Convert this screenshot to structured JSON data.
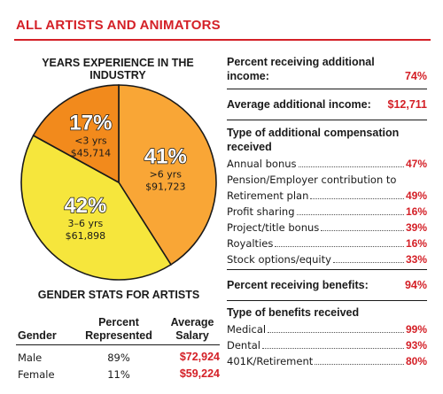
{
  "title": "ALL ARTISTS AND ANIMATORS",
  "chart_data": {
    "type": "pie",
    "title": "YEARS EXPERIENCE IN THE INDUSTRY",
    "slices": [
      {
        "label": ">6 yrs",
        "pct": 41,
        "pct_label": "41%",
        "salary": "$91,723",
        "color": "#f9a636"
      },
      {
        "label": "3–6 yrs",
        "pct": 42,
        "pct_label": "42%",
        "salary": "$61,898",
        "color": "#f6e63c"
      },
      {
        "label": "<3 yrs",
        "pct": 17,
        "pct_label": "17%",
        "salary": "$45,714",
        "color": "#f28a1c"
      }
    ]
  },
  "gender": {
    "title": "GENDER STATS FOR ARTISTS",
    "headers": {
      "gender": "Gender",
      "percent_1": "Percent",
      "percent_2": "Represented",
      "salary_1": "Average",
      "salary_2": "Salary"
    },
    "rows": [
      {
        "gender": "Male",
        "percent": "89%",
        "salary": "$72,924"
      },
      {
        "gender": "Female",
        "percent": "11%",
        "salary": "$59,224"
      }
    ]
  },
  "stats": {
    "addl_income_label_1": "Percent receiving additional",
    "addl_income_label_2": "income:",
    "addl_income_value": "74%",
    "avg_addl_label": "Average additional income:",
    "avg_addl_value": "$12,711",
    "comp_heading_1": "Type of additional compensation",
    "comp_heading_2": "received",
    "comp": [
      {
        "label": "Annual bonus",
        "value": "47%"
      },
      {
        "label": "Pension/Employer contribution to",
        "value": ""
      },
      {
        "label": "Retirement plan",
        "value": "49%"
      },
      {
        "label": "Profit sharing",
        "value": "16%"
      },
      {
        "label": "Project/title bonus",
        "value": "39%"
      },
      {
        "label": "Royalties",
        "value": "16%"
      },
      {
        "label": "Stock options/equity",
        "value": "33%"
      }
    ],
    "benefits_label": "Percent receiving benefits:",
    "benefits_value": "94%",
    "benefits_heading": "Type of benefits received",
    "benefits": [
      {
        "label": "Medical",
        "value": "99%"
      },
      {
        "label": "Dental",
        "value": "93%"
      },
      {
        "label": "401K/Retirement",
        "value": "80%"
      }
    ]
  }
}
